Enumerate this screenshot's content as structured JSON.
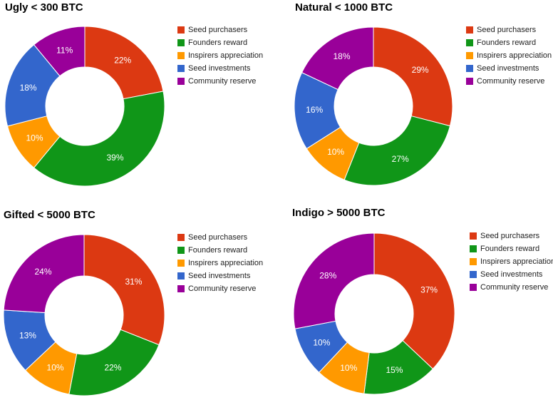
{
  "colors": {
    "seed_purchasers": "#dc3912",
    "founders_reward": "#109618",
    "inspirers_appreciation": "#ff9900",
    "seed_investments": "#3366cc",
    "community_reserve": "#990099"
  },
  "chart_data": [
    {
      "type": "pie",
      "donut": true,
      "title": "Ugly < 300 BTC",
      "categories": [
        "Seed purchasers",
        "Founders reward",
        "Inspirers appreciation",
        "Seed investments",
        "Community reserve"
      ],
      "values": [
        22,
        39,
        10,
        18,
        11
      ],
      "labels": [
        "22%",
        "39%",
        "10%",
        "18%",
        "11%"
      ],
      "legend_position": "right"
    },
    {
      "type": "pie",
      "donut": true,
      "title": "Natural < 1000 BTC",
      "categories": [
        "Seed purchasers",
        "Founders reward",
        "Inspirers appreciation",
        "Seed investments",
        "Community reserve"
      ],
      "values": [
        29,
        27,
        10,
        16,
        18
      ],
      "labels": [
        "29%",
        "27%",
        "10%",
        "16%",
        "18%"
      ],
      "legend_position": "right"
    },
    {
      "type": "pie",
      "donut": true,
      "title": "Gifted < 5000 BTC",
      "categories": [
        "Seed purchasers",
        "Founders reward",
        "Inspirers appreciation",
        "Seed investments",
        "Community reserve"
      ],
      "values": [
        31,
        22,
        10,
        13,
        24
      ],
      "labels": [
        "31%",
        "22%",
        "10%",
        "13%",
        "24%"
      ],
      "legend_position": "right"
    },
    {
      "type": "pie",
      "donut": true,
      "title": "Indigo > 5000 BTC",
      "categories": [
        "Seed purchasers",
        "Founders reward",
        "Inspirers appreciation",
        "Seed investments",
        "Community reserve"
      ],
      "values": [
        37,
        15,
        10,
        10,
        28
      ],
      "labels": [
        "37%",
        "15%",
        "10%",
        "10%",
        "28%"
      ],
      "legend_position": "right"
    }
  ]
}
